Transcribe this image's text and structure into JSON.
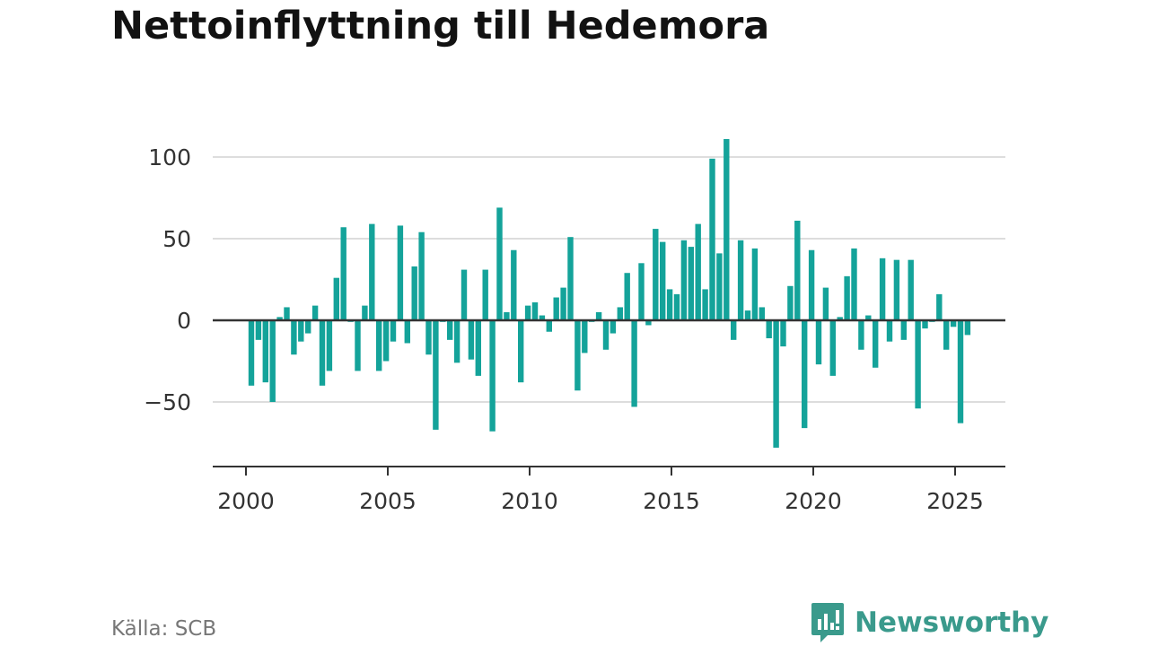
{
  "title": "Nettoinflyttning till Hedemora",
  "source": "Källa: SCB",
  "brand": {
    "name": "Newsworthy",
    "logo_icon": "newsworthy-logo-icon"
  },
  "colors": {
    "bar": "#14a39a",
    "zero_line": "#333333",
    "grid": "#dddddd",
    "brand": "#3a9a8c"
  },
  "chart_data": {
    "type": "bar",
    "title": "Nettoinflyttning till Hedemora",
    "xlabel": "",
    "ylabel": "",
    "x_start": "2000 Q1",
    "x_step": "quarter",
    "xticks": [
      2000,
      2005,
      2010,
      2015,
      2020,
      2025
    ],
    "yticks": [
      -50,
      0,
      50,
      100
    ],
    "ytick_labels": [
      "−50",
      "0",
      "50",
      "100"
    ],
    "ylim": [
      -85,
      115
    ],
    "grid": true,
    "values": [
      -40,
      -12,
      -38,
      -50,
      2,
      8,
      -21,
      -13,
      -8,
      9,
      -40,
      -31,
      26,
      57,
      -1,
      -31,
      9,
      59,
      -31,
      -25,
      -13,
      58,
      -14,
      33,
      54,
      -21,
      -67,
      -1,
      -12,
      -26,
      31,
      -24,
      -34,
      31,
      -68,
      69,
      5,
      43,
      -38,
      9,
      11,
      3,
      -7,
      14,
      20,
      51,
      -43,
      -20,
      -1,
      5,
      -18,
      -8,
      8,
      29,
      -53,
      35,
      -3,
      56,
      48,
      19,
      16,
      49,
      45,
      59,
      19,
      99,
      41,
      111,
      -12,
      49,
      6,
      44,
      8,
      -11,
      -78,
      -16,
      21,
      61,
      -66,
      43,
      -27,
      20,
      -34,
      2,
      27,
      44,
      -18,
      3,
      -29,
      38,
      -13,
      37,
      -12,
      37,
      -54,
      -5,
      -1,
      16,
      -18,
      -4,
      -63,
      -9
    ]
  }
}
